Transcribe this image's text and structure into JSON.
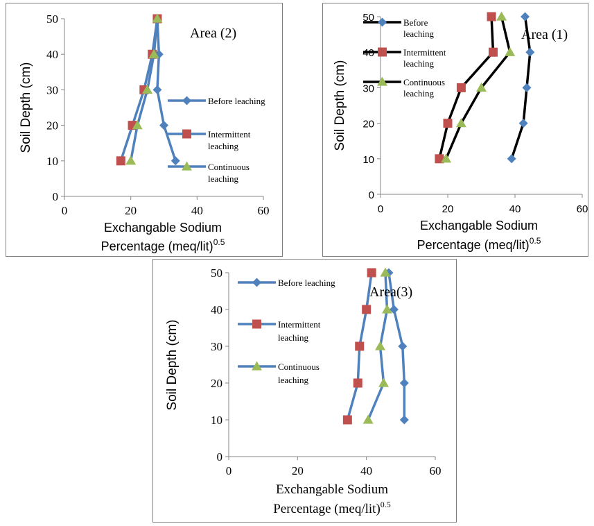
{
  "chart_data": [
    {
      "type": "line",
      "annotation": "Area (2)",
      "xlabel": [
        "Exchangable Sodium",
        "Percentage (meq/lit)"
      ],
      "xlabel_sup": "0.5",
      "ylabel": "Soil Depth (cm)",
      "xlim": [
        0,
        60
      ],
      "ylim": [
        0,
        50
      ],
      "x_ticks": [
        "0",
        "20",
        "40",
        "60"
      ],
      "y_ticks": [
        "0",
        "10",
        "20",
        "30",
        "40",
        "50"
      ],
      "legend_placement": "right",
      "series": [
        {
          "name": [
            "Before leaching"
          ],
          "color": "#4F81BD",
          "line_color": "#4F81BD",
          "marker": "diamond",
          "x": [
            33.5,
            30,
            28,
            28.5,
            28
          ],
          "y": [
            10,
            20,
            30,
            40,
            50
          ]
        },
        {
          "name": [
            "Intermittent",
            "leaching"
          ],
          "color": "#C0504D",
          "line_color": "#4F81BD",
          "marker": "square",
          "x": [
            17,
            20.5,
            24,
            26.5,
            28
          ],
          "y": [
            10,
            20,
            30,
            40,
            50
          ]
        },
        {
          "name": [
            "Continuous",
            "leaching"
          ],
          "color": "#9BBB59",
          "line_color": "#4F81BD",
          "marker": "triangle",
          "x": [
            20,
            22,
            25,
            27,
            28
          ],
          "y": [
            10,
            20,
            30,
            40,
            50
          ]
        }
      ]
    },
    {
      "type": "line",
      "annotation": "Area (1)",
      "xlabel": [
        "Exchangable Sodium",
        "Percentage (meq/lit)"
      ],
      "xlabel_sup": "0.5",
      "ylabel": "Soil Depth (cm)",
      "xlim": [
        0,
        60
      ],
      "ylim": [
        0,
        50
      ],
      "x_ticks": [
        "0",
        "20",
        "40",
        "60"
      ],
      "y_ticks": [
        "0",
        "10",
        "20",
        "30",
        "40",
        "50"
      ],
      "legend_placement": "top-left",
      "series": [
        {
          "name": [
            "Before",
            "leaching"
          ],
          "color": "#4F81BD",
          "line_color": "#000000",
          "marker": "diamond",
          "x": [
            39,
            42.5,
            43.5,
            44.5,
            43
          ],
          "y": [
            10,
            20,
            30,
            40,
            50
          ]
        },
        {
          "name": [
            "Intermittent",
            "leaching"
          ],
          "color": "#C0504D",
          "line_color": "#000000",
          "marker": "square",
          "x": [
            17.5,
            20,
            24,
            33.5,
            33
          ],
          "y": [
            10,
            20,
            30,
            40,
            50
          ]
        },
        {
          "name": [
            "Continuous",
            "leaching"
          ],
          "color": "#9BBB59",
          "line_color": "#000000",
          "marker": "triangle",
          "x": [
            19.5,
            24,
            30,
            38.5,
            36
          ],
          "y": [
            10,
            20,
            30,
            40,
            50
          ]
        }
      ]
    },
    {
      "type": "line",
      "annotation": "Area(3)",
      "xlabel": [
        "Exchangable Sodium",
        "Percentage (meq/lit)"
      ],
      "xlabel_sup": "0.5",
      "ylabel": "Soil Depth (cm)",
      "xlim": [
        0,
        60
      ],
      "ylim": [
        0,
        50
      ],
      "x_ticks": [
        "0",
        "20",
        "40",
        "60"
      ],
      "y_ticks": [
        "0",
        "10",
        "20",
        "30",
        "40",
        "50"
      ],
      "legend_placement": "top-left",
      "series": [
        {
          "name": [
            "Before leaching"
          ],
          "color": "#4F81BD",
          "line_color": "#4F81BD",
          "marker": "diamond",
          "x": [
            51,
            51,
            50.5,
            48,
            46.5
          ],
          "y": [
            10,
            20,
            30,
            40,
            50
          ]
        },
        {
          "name": [
            "Intermittent",
            "leaching"
          ],
          "color": "#C0504D",
          "line_color": "#4F81BD",
          "marker": "square",
          "x": [
            34.5,
            37.5,
            38,
            40,
            41.5
          ],
          "y": [
            10,
            20,
            30,
            40,
            50
          ]
        },
        {
          "name": [
            "Continuous",
            "leaching"
          ],
          "color": "#9BBB59",
          "line_color": "#4F81BD",
          "marker": "triangle",
          "x": [
            40.5,
            45,
            44,
            46,
            45.5
          ],
          "y": [
            10,
            20,
            30,
            40,
            50
          ]
        }
      ]
    }
  ]
}
